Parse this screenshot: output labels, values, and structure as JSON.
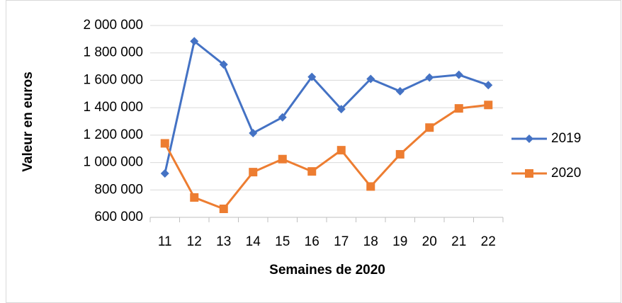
{
  "chart_data": {
    "type": "line",
    "x_label": "Semaines de 2020",
    "y_label": "Valeur en euros",
    "categories": [
      "11",
      "12",
      "13",
      "14",
      "15",
      "16",
      "17",
      "18",
      "19",
      "20",
      "21",
      "22"
    ],
    "series": [
      {
        "name": "2019",
        "color": "#4472c4",
        "marker": "diamond",
        "values": [
          920000,
          1885000,
          1715000,
          1215000,
          1330000,
          1625000,
          1390000,
          1610000,
          1520000,
          1620000,
          1640000,
          1565000
        ]
      },
      {
        "name": "2020",
        "color": "#ed7d31",
        "marker": "square",
        "values": [
          1140000,
          745000,
          662000,
          930000,
          1025000,
          935000,
          1090000,
          825000,
          1060000,
          1255000,
          1395000,
          1420000
        ]
      }
    ],
    "ylim": [
      600000,
      2000000
    ],
    "yticks": [
      {
        "value": 600000,
        "label": "600 000"
      },
      {
        "value": 800000,
        "label": "800 000"
      },
      {
        "value": 1000000,
        "label": "1 000 000"
      },
      {
        "value": 1200000,
        "label": "1 200 000"
      },
      {
        "value": 1400000,
        "label": "1 400 000"
      },
      {
        "value": 1600000,
        "label": "1 600 000"
      },
      {
        "value": 1800000,
        "label": "1 800 000"
      },
      {
        "value": 2000000,
        "label": "2 000 000"
      }
    ],
    "grid": true,
    "legend": "right"
  }
}
